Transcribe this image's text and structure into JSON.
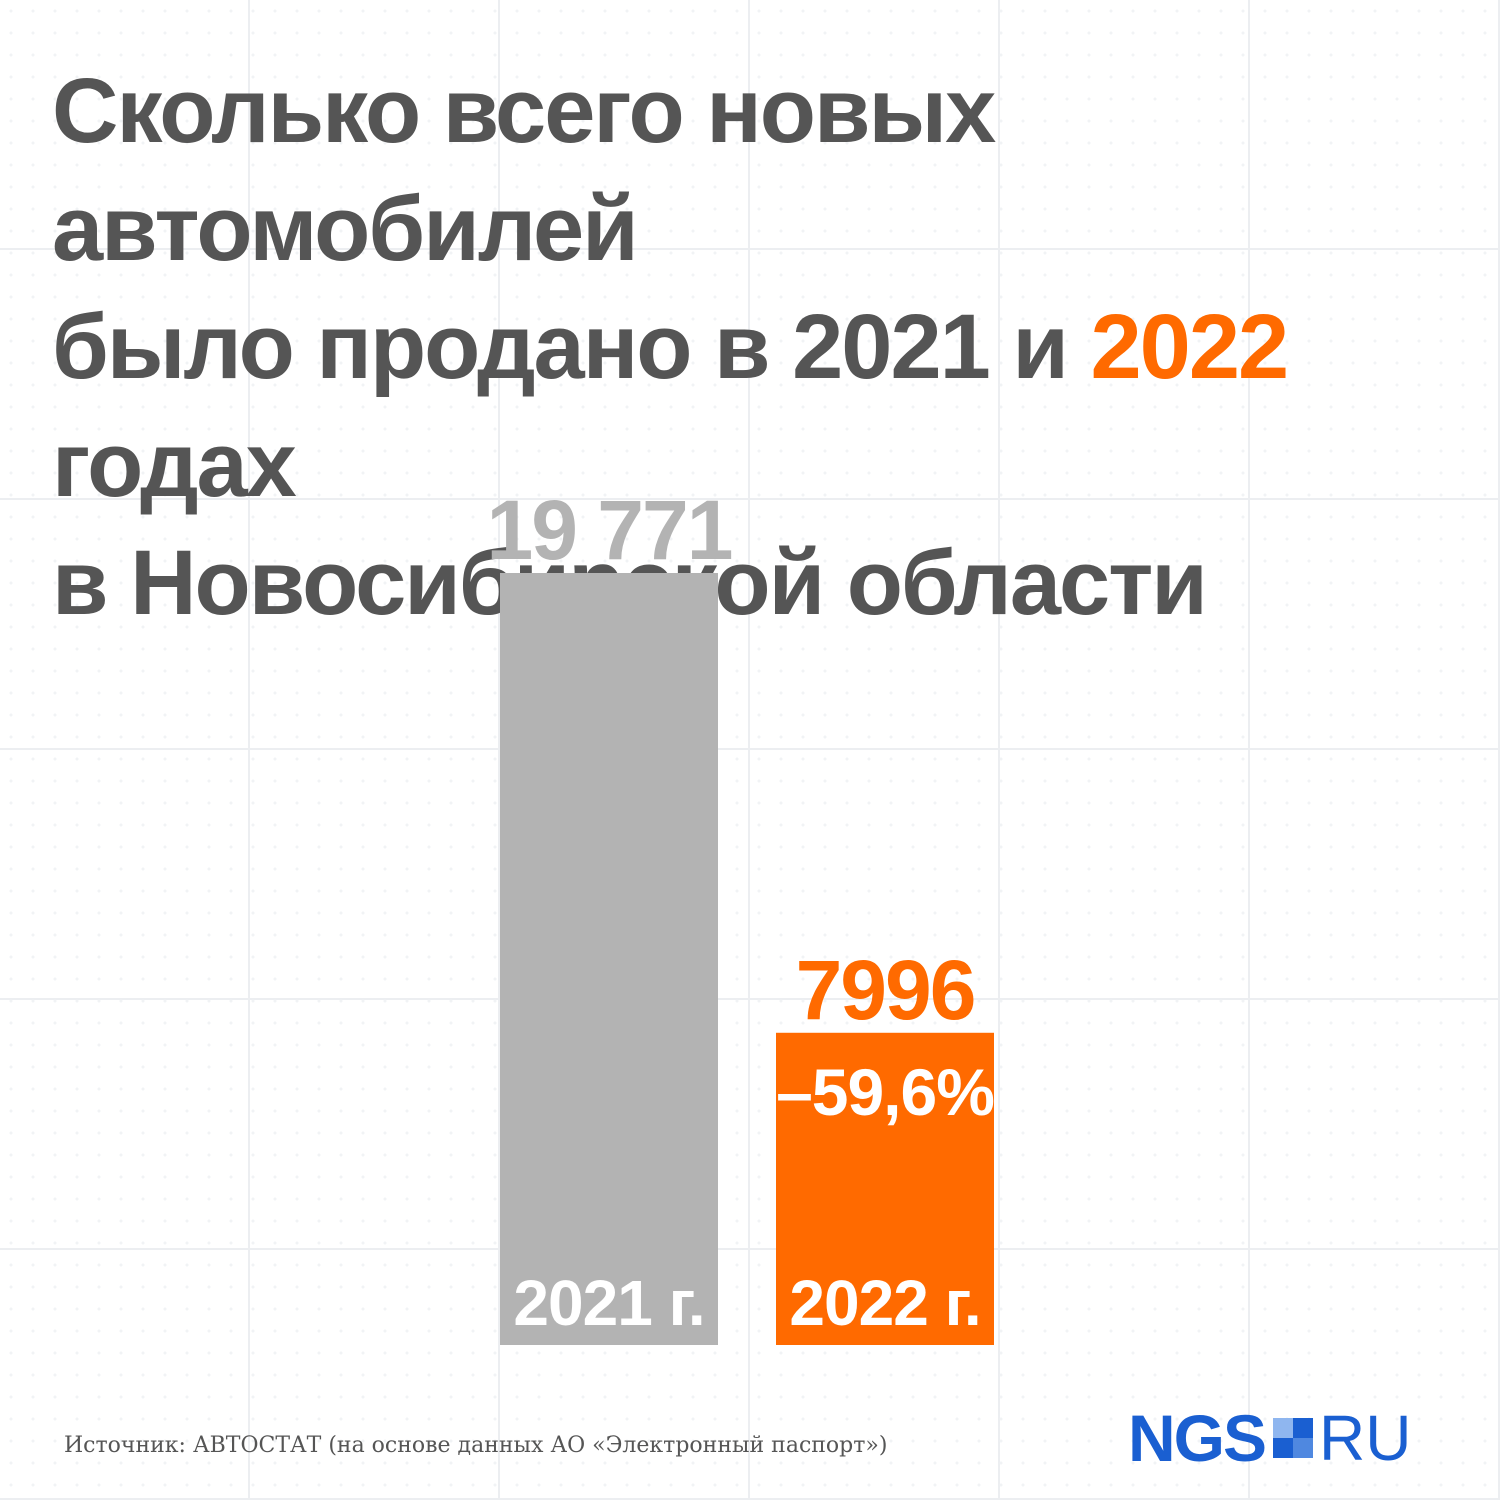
{
  "title": {
    "line1": "Сколько всего новых автомобилей",
    "line2_before": "было продано в 2021 и ",
    "line2_highlight": "2022",
    "line2_after": " годах",
    "line3": "в Новосибирской области"
  },
  "colors": {
    "text": "#555555",
    "accent": "#ff6a00",
    "bar_2021": "#b3b3b3",
    "label_2021": "#b3b3b3",
    "logo_blue": "#1a5fd1"
  },
  "chart_data": {
    "type": "bar",
    "categories": [
      "2021 г.",
      "2022 г."
    ],
    "values": [
      19771,
      7996
    ],
    "value_labels": [
      "19 771",
      "7996"
    ],
    "change_label": "–59,6%",
    "ylim": [
      0,
      19771
    ],
    "grid": false,
    "legend": "none"
  },
  "source": "Источник: АВТОСТАТ (на основе данных АО «Электронный паспорт»)",
  "logo": {
    "left": "NGS",
    "right": "RU",
    "icon": "ngs-square-icon"
  }
}
